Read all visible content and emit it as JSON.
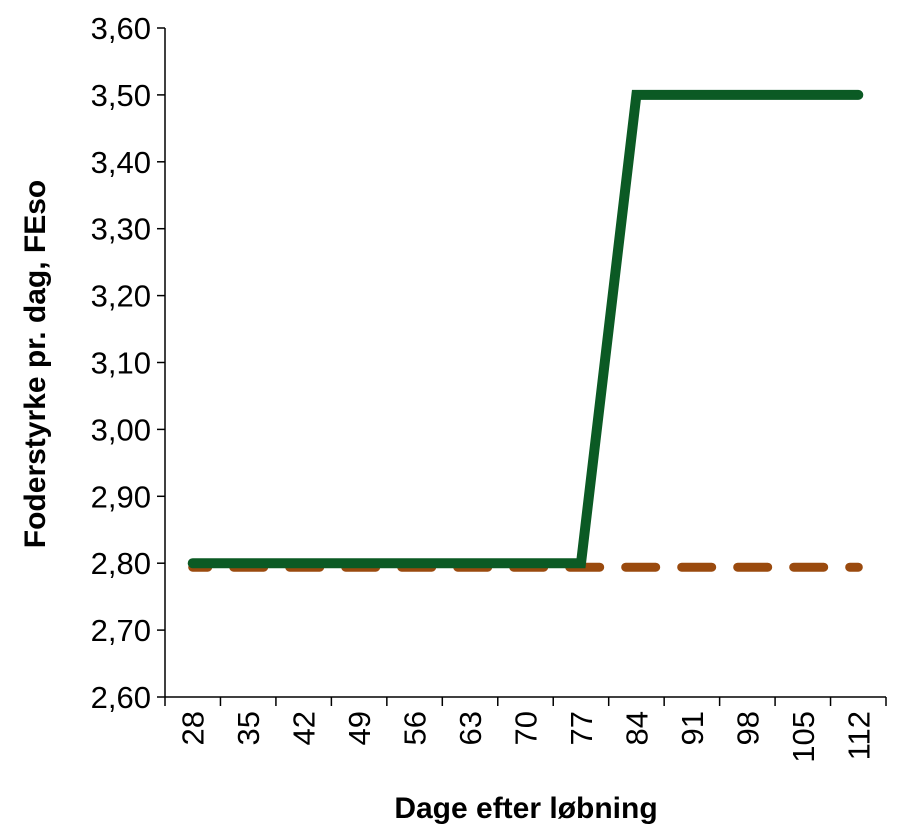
{
  "chart_data": {
    "type": "line",
    "title": "",
    "xlabel": "Dage efter løbning",
    "ylabel": "Foderstyrke pr. dag, FEso",
    "categories": [
      "28",
      "35",
      "42",
      "49",
      "56",
      "63",
      "70",
      "77",
      "84",
      "91",
      "98",
      "105",
      "112"
    ],
    "y_ticks": [
      "2,60",
      "2,70",
      "2,80",
      "2,90",
      "3,00",
      "3,10",
      "3,20",
      "3,30",
      "3,40",
      "3,50",
      "3,60"
    ],
    "ylim": [
      2.6,
      3.6
    ],
    "grid": false,
    "legend": "none",
    "series": [
      {
        "style": "solid",
        "color": "#0b5a24",
        "values": [
          2.8,
          2.8,
          2.8,
          2.8,
          2.8,
          2.8,
          2.8,
          2.8,
          3.5,
          3.5,
          3.5,
          3.5,
          3.5
        ]
      },
      {
        "style": "dashed",
        "color": "#9a4a0e",
        "values": [
          2.8,
          2.8,
          2.8,
          2.8,
          2.8,
          2.8,
          2.8,
          2.8,
          2.8,
          2.8,
          2.8,
          2.8,
          2.8
        ]
      }
    ]
  }
}
